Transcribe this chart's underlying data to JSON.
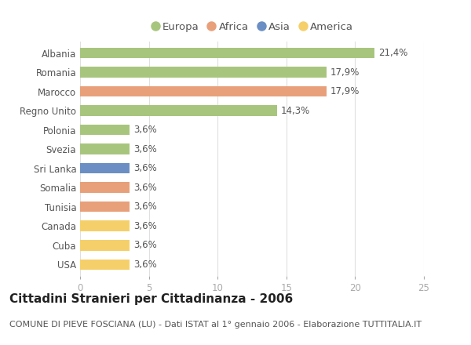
{
  "categories": [
    "Albania",
    "Romania",
    "Marocco",
    "Regno Unito",
    "Polonia",
    "Svezia",
    "Sri Lanka",
    "Somalia",
    "Tunisia",
    "Canada",
    "Cuba",
    "USA"
  ],
  "values": [
    21.4,
    17.9,
    17.9,
    14.3,
    3.6,
    3.6,
    3.6,
    3.6,
    3.6,
    3.6,
    3.6,
    3.6
  ],
  "labels": [
    "21,4%",
    "17,9%",
    "17,9%",
    "14,3%",
    "3,6%",
    "3,6%",
    "3,6%",
    "3,6%",
    "3,6%",
    "3,6%",
    "3,6%",
    "3,6%"
  ],
  "colors": [
    "#a8c57e",
    "#a8c57e",
    "#e8a07a",
    "#a8c57e",
    "#a8c57e",
    "#a8c57e",
    "#6b8fc4",
    "#e8a07a",
    "#e8a07a",
    "#f5d06a",
    "#f5d06a",
    "#f5d06a"
  ],
  "legend_labels": [
    "Europa",
    "Africa",
    "Asia",
    "America"
  ],
  "legend_colors": [
    "#a8c57e",
    "#e8a07a",
    "#6b8fc4",
    "#f5d06a"
  ],
  "title": "Cittadini Stranieri per Cittadinanza - 2006",
  "subtitle": "COMUNE DI PIEVE FOSCIANA (LU) - Dati ISTAT al 1° gennaio 2006 - Elaborazione TUTTITALIA.IT",
  "xlim": [
    0,
    25
  ],
  "xticks": [
    0,
    5,
    10,
    15,
    20,
    25
  ],
  "background_color": "#ffffff",
  "grid_color": "#e0e0e0",
  "bar_height": 0.55,
  "title_fontsize": 11,
  "subtitle_fontsize": 8,
  "label_fontsize": 8.5,
  "tick_fontsize": 8.5,
  "legend_fontsize": 9.5
}
